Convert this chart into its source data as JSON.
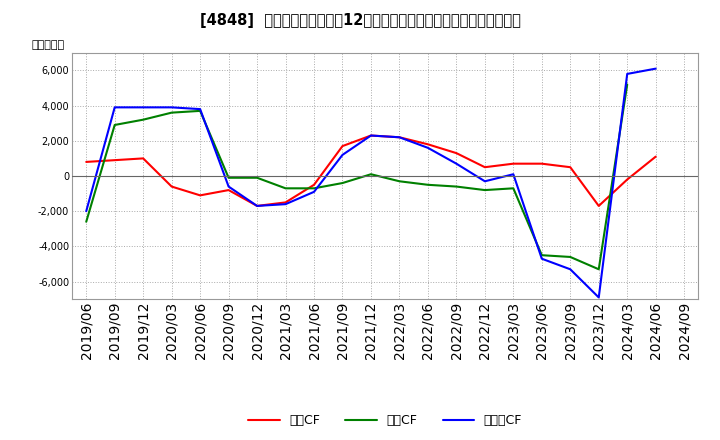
{
  "title": "[4848]  キャッシュフローの12か月移動合計の対前年同期増減額の推移",
  "ylabel": "（百万円）",
  "ylim": [
    -7000,
    7000
  ],
  "yticks": [
    -6000,
    -4000,
    -2000,
    0,
    2000,
    4000,
    6000
  ],
  "labels": [
    "営業CF",
    "投資CF",
    "フリーCF"
  ],
  "colors": [
    "#ff0000",
    "#008000",
    "#0000ff"
  ],
  "x_labels": [
    "2019/06",
    "2019/09",
    "2019/12",
    "2020/03",
    "2020/06",
    "2020/09",
    "2020/12",
    "2021/03",
    "2021/06",
    "2021/09",
    "2021/12",
    "2022/03",
    "2022/06",
    "2022/09",
    "2022/12",
    "2023/03",
    "2023/06",
    "2023/09",
    "2023/12",
    "2024/03",
    "2024/06",
    "2024/09"
  ],
  "series_0": [
    800,
    900,
    1000,
    -600,
    -1100,
    -800,
    -1700,
    -1500,
    -500,
    1700,
    2300,
    2200,
    1800,
    1300,
    500,
    700,
    700,
    500,
    -1700,
    -200,
    1100,
    null
  ],
  "series_1": [
    -2600,
    2900,
    3200,
    3600,
    3700,
    -100,
    -100,
    -700,
    -700,
    -400,
    100,
    -300,
    -500,
    -600,
    -800,
    -700,
    -4500,
    -4600,
    -5300,
    5200,
    null,
    null
  ],
  "series_2": [
    -2000,
    3900,
    3900,
    3900,
    3800,
    -600,
    -1700,
    -1600,
    -900,
    1200,
    2300,
    2200,
    1600,
    700,
    -300,
    100,
    -4700,
    -5300,
    -6900,
    5800,
    6100,
    null
  ],
  "grid_color": "#aaaaaa",
  "spine_color": "#999999",
  "bg_color": "#ffffff",
  "title_fontsize": 10.5,
  "tick_fontsize": 7,
  "ylabel_fontsize": 8,
  "legend_fontsize": 9,
  "linewidth": 1.5
}
